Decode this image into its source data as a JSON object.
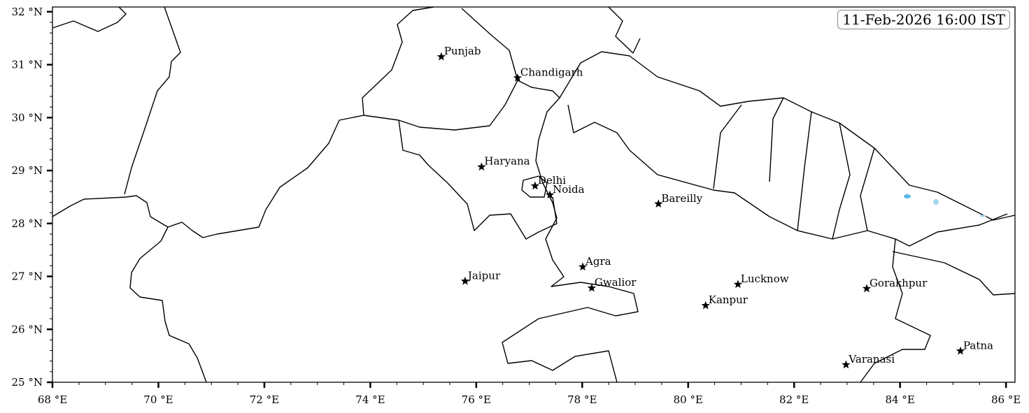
{
  "map": {
    "timestamp": "11-Feb-2026 16:00 IST",
    "extent": {
      "lon": [
        68,
        86.17
      ],
      "lat": [
        25,
        32.09
      ]
    },
    "x_ticks": [
      {
        "value": 68,
        "label": "68 °E"
      },
      {
        "value": 70,
        "label": "70 °E"
      },
      {
        "value": 72,
        "label": "72 °E"
      },
      {
        "value": 74,
        "label": "74 °E"
      },
      {
        "value": 76,
        "label": "76 °E"
      },
      {
        "value": 78,
        "label": "78 °E"
      },
      {
        "value": 80,
        "label": "80 °E"
      },
      {
        "value": 82,
        "label": "82 °E"
      },
      {
        "value": 84,
        "label": "84 °E"
      },
      {
        "value": 86,
        "label": "86 °E"
      }
    ],
    "y_ticks": [
      {
        "value": 25,
        "label": "25 °N"
      },
      {
        "value": 26,
        "label": "26 °N"
      },
      {
        "value": 27,
        "label": "27 °N"
      },
      {
        "value": 28,
        "label": "28 °N"
      },
      {
        "value": 29,
        "label": "29 °N"
      },
      {
        "value": 30,
        "label": "30 °N"
      },
      {
        "value": 31,
        "label": "31 °N"
      },
      {
        "value": 32,
        "label": "32 °N"
      }
    ],
    "x_minor_step": 0.5,
    "y_minor_step": 0.2,
    "boundary_color": "#000000",
    "water_color": "#5bb8e6",
    "cities": [
      {
        "name": "Punjab",
        "lon": 75.34,
        "lat": 31.15
      },
      {
        "name": "Chandigarh",
        "lon": 76.78,
        "lat": 30.75
      },
      {
        "name": "Haryana",
        "lon": 76.1,
        "lat": 29.07
      },
      {
        "name": "Delhi",
        "lon": 77.11,
        "lat": 28.71
      },
      {
        "name": "Noida",
        "lon": 77.39,
        "lat": 28.54
      },
      {
        "name": "Bareilly",
        "lon": 79.44,
        "lat": 28.37
      },
      {
        "name": "Agra",
        "lon": 78.01,
        "lat": 27.18
      },
      {
        "name": "Jaipur",
        "lon": 75.79,
        "lat": 26.91
      },
      {
        "name": "Gwalior",
        "lon": 78.18,
        "lat": 26.78
      },
      {
        "name": "Lucknow",
        "lon": 80.94,
        "lat": 26.85
      },
      {
        "name": "Kanpur",
        "lon": 80.33,
        "lat": 26.45
      },
      {
        "name": "Gorakhpur",
        "lon": 83.37,
        "lat": 26.77
      },
      {
        "name": "Patna",
        "lon": 85.14,
        "lat": 25.59
      },
      {
        "name": "Varanasi",
        "lon": 82.98,
        "lat": 25.33
      }
    ]
  }
}
